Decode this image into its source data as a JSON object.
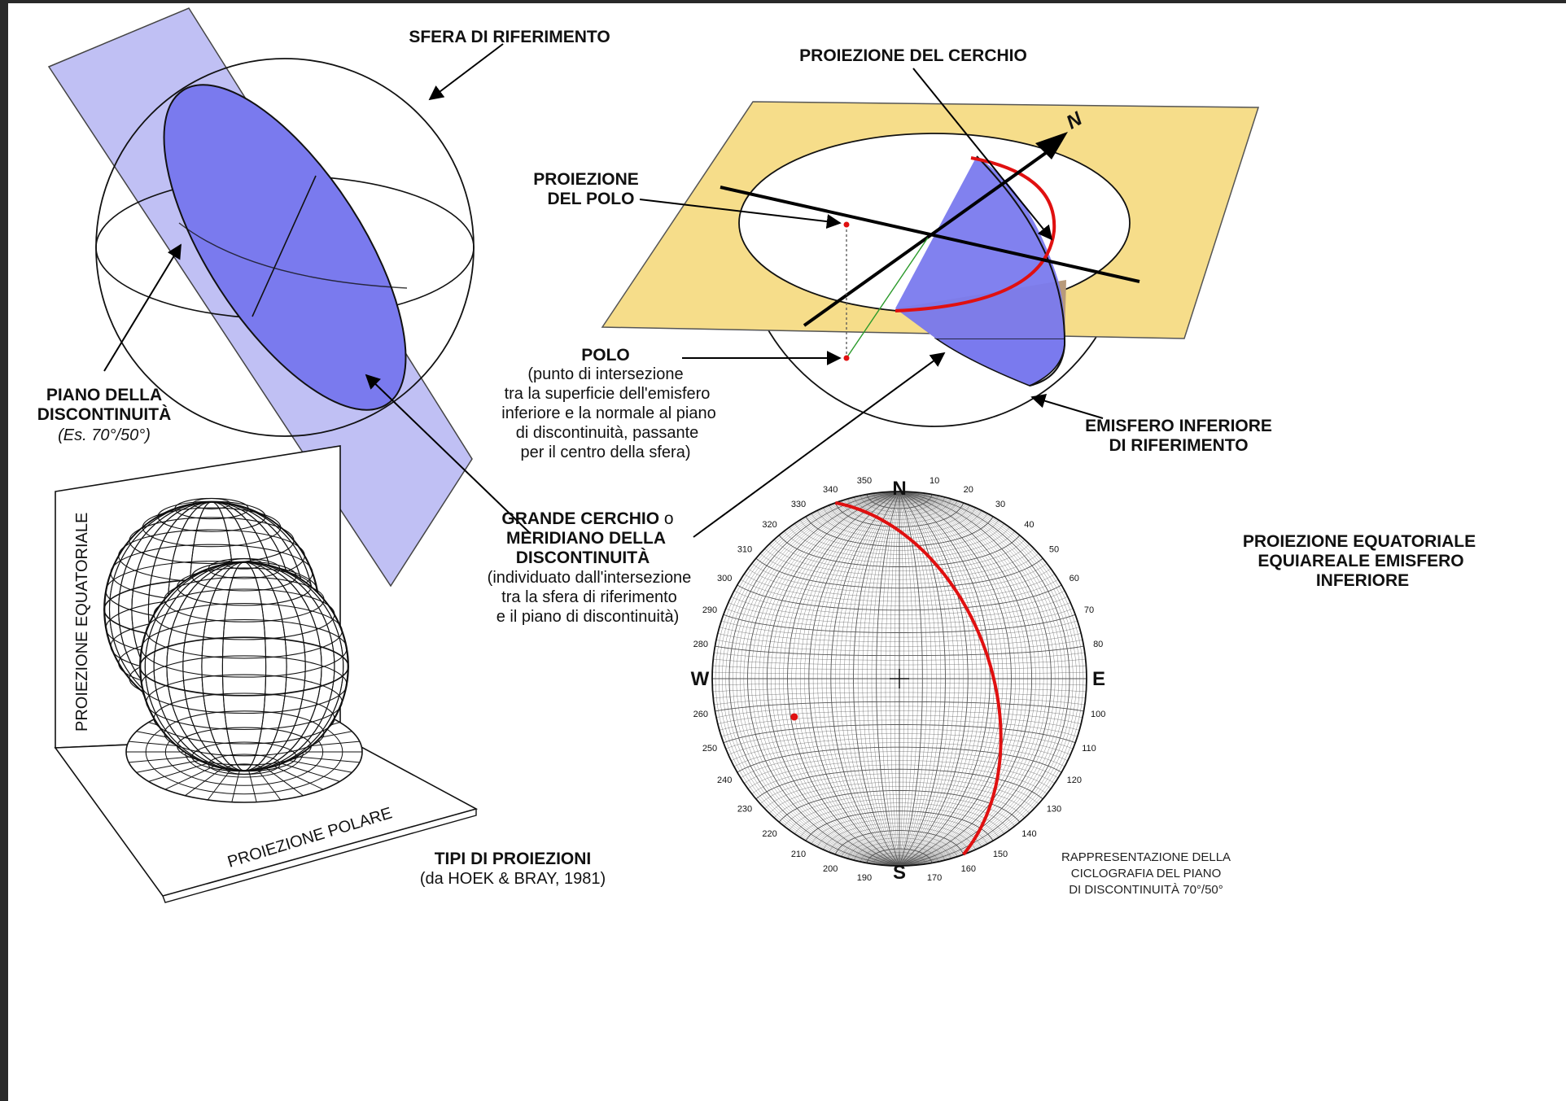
{
  "labels": {
    "sfera": "SFERA DI RIFERIMENTO",
    "proiezione_cerchio": "PROIEZIONE DEL CERCHIO",
    "proiezione_polo_1": "PROIEZIONE",
    "proiezione_polo_2": "DEL POLO",
    "polo_title": "POLO",
    "polo_desc": [
      "(punto di intersezione",
      "tra la superficie dell'emisfero",
      "inferiore e la normale al piano",
      "di discontinuità, passante",
      "per il centro della sfera)"
    ],
    "emisfero_1": "EMISFERO INFERIORE",
    "emisfero_2": "DI RIFERIMENTO",
    "piano_1": "PIANO DELLA",
    "piano_2": "DISCONTINUITÀ",
    "piano_3": "(Es. 70°/50°)",
    "grande_1a": "GRANDE CERCHIO",
    "grande_1b": " o",
    "grande_2": "MERIDIANO DELLA",
    "grande_3": "DISCONTINUITÀ",
    "grande_desc": [
      "(individuato dall'intersezione",
      "tra la sfera di riferimento",
      "e il piano di discontinuità)"
    ],
    "proj_eq_1": "PROIEZIONE EQUATORIALE",
    "proj_eq_2": "EQUIAREALE EMISFERO",
    "proj_eq_3": "INFERIORE",
    "tipi_1": "TIPI DI PROIEZIONI",
    "tipi_2": "(da HOEK & BRAY, 1981)",
    "box_equatoriale": "PROIEZIONE EQUATORIALE",
    "box_polare": "PROIEZIONE POLARE",
    "rappr": [
      "RAPPRESENTAZIONE DELLA",
      "CICLOGRAFIA DEL PIANO",
      "DI DISCONTINUITÀ 70°/50°"
    ],
    "north_arrow": "N"
  },
  "stereonet": {
    "cardinals": {
      "n": "N",
      "s": "S",
      "e": "E",
      "w": "W"
    },
    "azimuths": [
      "10",
      "20",
      "30",
      "40",
      "50",
      "60",
      "70",
      "80",
      "100",
      "110",
      "120",
      "130",
      "140",
      "150",
      "160",
      "170",
      "190",
      "200",
      "210",
      "220",
      "230",
      "240",
      "250",
      "260",
      "280",
      "290",
      "300",
      "310",
      "320",
      "330",
      "340",
      "350"
    ],
    "plane_dip_direction": 70,
    "plane_dip": 50
  },
  "colors": {
    "plane_fill": "#b5b5f2",
    "disc_fill": "#7a7aee",
    "horizontal_plane": "#f6dd8a",
    "great_circle": "#e01010",
    "pole": "#e01010",
    "normal_line": "#2a9a2a"
  }
}
